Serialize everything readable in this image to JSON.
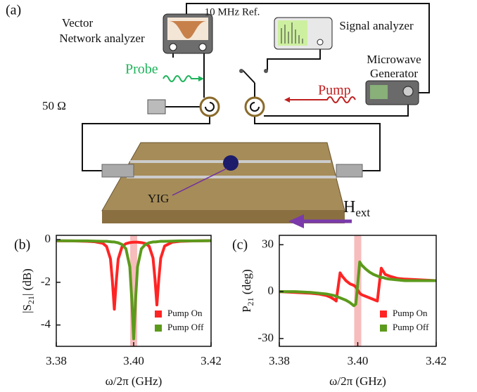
{
  "panel_label": "(a)",
  "diagram": {
    "vna_label": [
      "Vector",
      "Network analyzer"
    ],
    "ref_label": "10 MHz Ref.",
    "signal_analyzer_label": "Signal analyzer",
    "generator_label": [
      "Microwave",
      "Generator"
    ],
    "probe_label": "Probe",
    "pump_label": "Pump",
    "termination_label": "50 Ω",
    "sample_label": "YIG",
    "field_label": [
      "H",
      "ext"
    ]
  },
  "chart_data": [
    {
      "type": "line",
      "panel_label": "(b)",
      "xlabel": "ω/2π  (GHz)",
      "ylabel": [
        "|S",
        "21",
        "| (dB)"
      ],
      "x": [
        3.38,
        3.384,
        3.388,
        3.39,
        3.392,
        3.393,
        3.394,
        3.3945,
        3.395,
        3.3955,
        3.396,
        3.397,
        3.398,
        3.399,
        3.3995,
        3.4,
        3.4005,
        3.401,
        3.402,
        3.403,
        3.404,
        3.405,
        3.4055,
        3.406,
        3.4065,
        3.407,
        3.408,
        3.41,
        3.412,
        3.416,
        3.42
      ],
      "series": [
        {
          "name": "Pump On",
          "color": "#ff2424",
          "values": [
            -0.06,
            -0.06,
            -0.08,
            -0.1,
            -0.17,
            -0.32,
            -0.9,
            -1.94,
            -3.26,
            -1.95,
            -0.91,
            -0.33,
            -0.19,
            -0.14,
            -0.13,
            -0.12,
            -0.12,
            -0.12,
            -0.14,
            -0.18,
            -0.31,
            -0.86,
            -1.83,
            -3.06,
            -1.83,
            -0.86,
            -0.3,
            -0.12,
            -0.08,
            -0.06,
            -0.05
          ]
        },
        {
          "name": "Pump Off",
          "color": "#5c9a1c",
          "values": [
            -0.05,
            -0.06,
            -0.06,
            -0.07,
            -0.08,
            -0.08,
            -0.1,
            -0.11,
            -0.11,
            -0.13,
            -0.15,
            -0.23,
            -0.43,
            -1.27,
            -2.76,
            -4.65,
            -2.76,
            -1.27,
            -0.43,
            -0.23,
            -0.15,
            -0.11,
            -0.11,
            -0.1,
            -0.09,
            -0.08,
            -0.08,
            -0.07,
            -0.06,
            -0.06,
            -0.05
          ]
        }
      ],
      "xlim": [
        3.38,
        3.42
      ],
      "xticks": [
        3.38,
        {
          "value": 3.4,
          "label": "3.40"
        },
        3.42
      ],
      "ylim": [
        -5,
        0.2
      ],
      "yticks": [
        -4,
        -2,
        0
      ],
      "highlight_range": [
        3.3991,
        3.4009
      ],
      "highlight_color": "#f4a0a0",
      "legend": "lower right"
    },
    {
      "type": "line",
      "panel_label": "(c)",
      "xlabel": "ω/2π  (GHz)",
      "ylabel": [
        "P",
        "21",
        " (deg)"
      ],
      "x": [
        3.38,
        3.384,
        3.388,
        3.39,
        3.392,
        3.393,
        3.394,
        3.3945,
        3.395,
        3.3955,
        3.396,
        3.397,
        3.398,
        3.399,
        3.3995,
        3.4,
        3.4005,
        3.401,
        3.402,
        3.403,
        3.404,
        3.405,
        3.4055,
        3.406,
        3.4065,
        3.407,
        3.408,
        3.41,
        3.412,
        3.416,
        3.42
      ],
      "series": [
        {
          "name": "Pump On",
          "color": "#ff2424",
          "values": [
            0,
            -0.5,
            -1,
            -1.5,
            -2.5,
            -3.5,
            -5,
            -6,
            3,
            12,
            10,
            7,
            5,
            4,
            3,
            1,
            -1,
            -2,
            -3,
            -4,
            -5,
            -6,
            5,
            15,
            13,
            11,
            10,
            8.5,
            8,
            7.5,
            7
          ]
        },
        {
          "name": "Pump Off",
          "color": "#5c9a1c",
          "values": [
            0,
            0,
            -0.5,
            -1,
            -1.5,
            -2,
            -2.5,
            -3,
            -3.5,
            -4,
            -4.5,
            -5.5,
            -7,
            -9,
            -8,
            5,
            19,
            17,
            14.5,
            12.5,
            11,
            10,
            9.5,
            9,
            9,
            8.5,
            8,
            7.5,
            7,
            7,
            7
          ]
        }
      ],
      "xlim": [
        3.38,
        3.42
      ],
      "xticks": [
        3.38,
        {
          "value": 3.4,
          "label": "3.40"
        },
        3.42
      ],
      "ylim": [
        -35,
        36
      ],
      "yticks": [
        -30,
        0,
        30
      ],
      "highlight_range": [
        3.3991,
        3.4009
      ],
      "highlight_color": "#f4a0a0",
      "legend": "lower right"
    }
  ]
}
